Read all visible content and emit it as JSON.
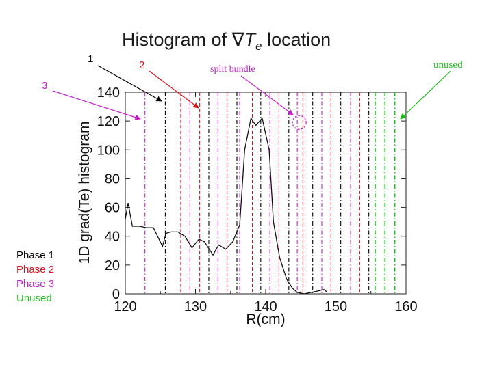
{
  "title": {
    "prefix": "Histogram of ",
    "symbol": "∇",
    "var": "T",
    "sub": "e",
    "suffix": " location"
  },
  "annotations": {
    "one": "1",
    "two": "2",
    "three": "3",
    "split_bundle": "split bundle",
    "unused": "unused"
  },
  "legend": [
    {
      "label": "Phase 1",
      "color": "#000000"
    },
    {
      "label": "Phase 2",
      "color": "#d4141c"
    },
    {
      "label": "Phase 3",
      "color": "#c020c8"
    },
    {
      "label": "Unused",
      "color": "#1bbf1b"
    }
  ],
  "colors": {
    "phase1": "#000000",
    "phase2": "#d4141c",
    "phase3": "#c020c8",
    "unused": "#1bbf1b",
    "split_marker": "#c020c8"
  },
  "chart_data": {
    "type": "line",
    "xlabel": "R(cm)",
    "ylabel": "1D grad(Te) histogram",
    "xlim": [
      120,
      160
    ],
    "ylim": [
      0,
      140
    ],
    "xticks": [
      120,
      130,
      140,
      150,
      160
    ],
    "yticks": [
      0,
      20,
      40,
      60,
      80,
      100,
      120,
      140
    ],
    "grid": false,
    "series": [
      {
        "x": [
          120.0,
          120.4,
          121.0,
          122.0,
          123.0,
          124.0,
          125.3,
          125.8,
          126.5,
          127.5,
          128.5,
          129.5,
          130.5,
          131.3,
          132.5,
          133.3,
          134.3,
          135.3,
          136.3,
          137.0,
          137.9,
          138.6,
          139.5,
          140.5,
          141.1,
          142.0,
          143.0,
          143.8,
          144.5,
          145.5,
          146.5,
          147.5,
          148.3,
          148.8
        ],
        "y": [
          52,
          63,
          47,
          47,
          46,
          46,
          33,
          42,
          43,
          43,
          40,
          32,
          38,
          36,
          27,
          34,
          31,
          36,
          48,
          100,
          122,
          117,
          122,
          100,
          50,
          25,
          10,
          4,
          1,
          0,
          1,
          2,
          3,
          1
        ]
      }
    ],
    "vertical_lines": [
      {
        "x": 122.8,
        "phase": "phase3"
      },
      {
        "x": 125.7,
        "phase": "phase1"
      },
      {
        "x": 127.9,
        "phase": "phase2"
      },
      {
        "x": 129.2,
        "phase": "phase3"
      },
      {
        "x": 130.6,
        "phase": "phase2"
      },
      {
        "x": 131.9,
        "phase": "phase1"
      },
      {
        "x": 133.2,
        "phase": "phase3"
      },
      {
        "x": 134.5,
        "phase": "phase2"
      },
      {
        "x": 135.9,
        "phase": "phase1"
      },
      {
        "x": 136.3,
        "phase": "phase3"
      },
      {
        "x": 138.1,
        "phase": "phase2"
      },
      {
        "x": 139.3,
        "phase": "phase1"
      },
      {
        "x": 140.6,
        "phase": "phase3"
      },
      {
        "x": 141.9,
        "phase": "phase2"
      },
      {
        "x": 143.3,
        "phase": "phase1"
      },
      {
        "x": 144.5,
        "phase": "phase3"
      },
      {
        "x": 145.3,
        "phase": "phase2"
      },
      {
        "x": 146.7,
        "phase": "phase1"
      },
      {
        "x": 148.0,
        "phase": "phase3"
      },
      {
        "x": 149.3,
        "phase": "phase2"
      },
      {
        "x": 150.7,
        "phase": "phase1"
      },
      {
        "x": 152.1,
        "phase": "phase3"
      },
      {
        "x": 153.4,
        "phase": "phase2"
      },
      {
        "x": 154.7,
        "phase": "phase1"
      },
      {
        "x": 155.6,
        "phase": "unused"
      },
      {
        "x": 157.0,
        "phase": "unused"
      },
      {
        "x": 158.4,
        "phase": "unused"
      }
    ],
    "split_marker": {
      "x": 144.8,
      "y": 119
    }
  }
}
